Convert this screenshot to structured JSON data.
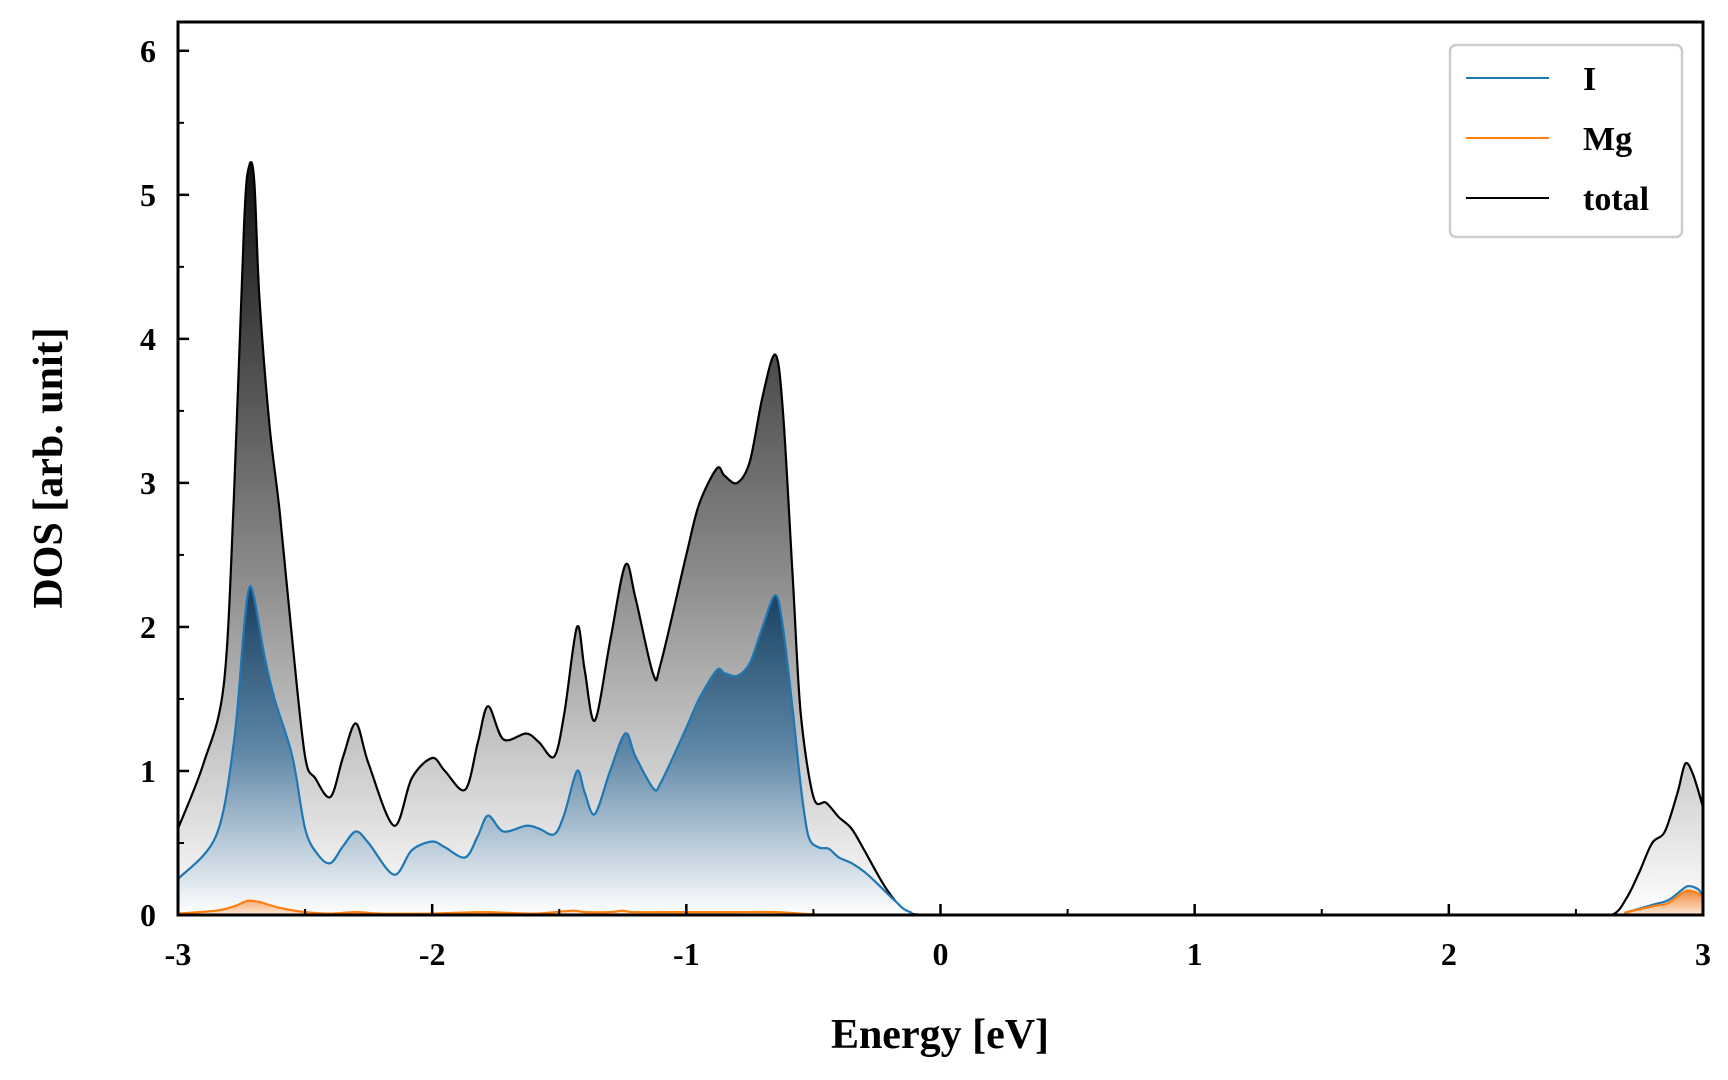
{
  "chart_data": {
    "type": "area",
    "title": "",
    "xlabel": "Energy [eV]",
    "ylabel": "DOS [arb. unit]",
    "xlim": [
      -3,
      3
    ],
    "ylim": [
      0,
      6.2
    ],
    "xticks": [
      -3,
      -2,
      -1,
      0,
      1,
      2,
      3
    ],
    "xtick_labels": [
      "-3",
      "-2",
      "-1",
      "0",
      "1",
      "2",
      "3"
    ],
    "yticks": [
      0,
      1,
      2,
      3,
      4,
      5,
      6
    ],
    "ytick_labels": [
      "0",
      "1",
      "2",
      "3",
      "4",
      "5",
      "6"
    ],
    "grid": false,
    "legend_position": "top-right",
    "series": [
      {
        "name": "total",
        "color": "#000000",
        "fill": "gray-gradient",
        "x": [
          -3.0,
          -2.9,
          -2.82,
          -2.78,
          -2.74,
          -2.72,
          -2.7,
          -2.68,
          -2.64,
          -2.6,
          -2.55,
          -2.5,
          -2.46,
          -2.4,
          -2.35,
          -2.3,
          -2.25,
          -2.15,
          -2.08,
          -2.0,
          -1.95,
          -1.87,
          -1.82,
          -1.78,
          -1.72,
          -1.63,
          -1.58,
          -1.52,
          -1.48,
          -1.43,
          -1.4,
          -1.36,
          -1.3,
          -1.24,
          -1.2,
          -1.13,
          -1.1,
          -1.0,
          -0.95,
          -0.88,
          -0.85,
          -0.8,
          -0.75,
          -0.7,
          -0.65,
          -0.62,
          -0.58,
          -0.55,
          -0.5,
          -0.45,
          -0.4,
          -0.35,
          -0.3,
          -0.22,
          -0.15,
          -0.12,
          0.0,
          0.5,
          1.0,
          1.5,
          2.0,
          2.5,
          2.64,
          2.7,
          2.75,
          2.8,
          2.85,
          2.9,
          2.93,
          2.96,
          3.0
        ],
        "y": [
          0.6,
          1.05,
          1.6,
          2.9,
          4.8,
          5.2,
          5.1,
          4.3,
          3.4,
          2.8,
          1.9,
          1.1,
          0.95,
          0.82,
          1.1,
          1.33,
          1.05,
          0.62,
          0.95,
          1.09,
          1.0,
          0.87,
          1.2,
          1.45,
          1.22,
          1.26,
          1.2,
          1.1,
          1.4,
          2.0,
          1.7,
          1.35,
          1.9,
          2.43,
          2.2,
          1.67,
          1.75,
          2.5,
          2.85,
          3.1,
          3.05,
          3.0,
          3.15,
          3.6,
          3.89,
          3.5,
          2.3,
          1.4,
          0.82,
          0.78,
          0.68,
          0.6,
          0.45,
          0.2,
          0.04,
          0.01,
          0.0,
          0.0,
          0.0,
          0.0,
          0.0,
          0.0,
          0.0,
          0.12,
          0.3,
          0.5,
          0.58,
          0.85,
          1.05,
          0.98,
          0.75
        ]
      },
      {
        "name": "I",
        "color": "#1f77b4",
        "fill": "blue-gradient",
        "x": [
          -3.0,
          -2.85,
          -2.78,
          -2.74,
          -2.72,
          -2.7,
          -2.66,
          -2.62,
          -2.55,
          -2.5,
          -2.45,
          -2.4,
          -2.35,
          -2.3,
          -2.25,
          -2.15,
          -2.08,
          -2.0,
          -1.95,
          -1.87,
          -1.82,
          -1.78,
          -1.72,
          -1.63,
          -1.58,
          -1.52,
          -1.48,
          -1.43,
          -1.4,
          -1.36,
          -1.3,
          -1.24,
          -1.2,
          -1.13,
          -1.1,
          -1.0,
          -0.95,
          -0.88,
          -0.85,
          -0.8,
          -0.75,
          -0.7,
          -0.65,
          -0.62,
          -0.58,
          -0.55,
          -0.52,
          -0.48,
          -0.44,
          -0.4,
          -0.35,
          -0.3,
          -0.25,
          -0.18,
          -0.12,
          0.0,
          1.0,
          2.0,
          2.64,
          2.7,
          2.8,
          2.86,
          2.9,
          2.94,
          2.98,
          3.0
        ],
        "y": [
          0.25,
          0.55,
          1.2,
          2.0,
          2.27,
          2.2,
          1.8,
          1.5,
          1.1,
          0.6,
          0.42,
          0.36,
          0.48,
          0.58,
          0.5,
          0.28,
          0.45,
          0.51,
          0.47,
          0.4,
          0.55,
          0.69,
          0.58,
          0.62,
          0.6,
          0.56,
          0.7,
          1.0,
          0.85,
          0.7,
          1.0,
          1.26,
          1.1,
          0.88,
          0.92,
          1.3,
          1.5,
          1.7,
          1.68,
          1.66,
          1.75,
          2.0,
          2.22,
          2.0,
          1.4,
          0.9,
          0.55,
          0.47,
          0.46,
          0.4,
          0.36,
          0.3,
          0.22,
          0.1,
          0.02,
          0.0,
          0.0,
          0.0,
          0.0,
          0.02,
          0.07,
          0.1,
          0.15,
          0.2,
          0.18,
          0.13
        ]
      },
      {
        "name": "Mg",
        "color": "#ff7f0e",
        "fill": "orange-gradient",
        "x": [
          -3.0,
          -2.85,
          -2.78,
          -2.74,
          -2.72,
          -2.68,
          -2.6,
          -2.5,
          -2.4,
          -2.3,
          -2.2,
          -2.0,
          -1.8,
          -1.6,
          -1.45,
          -1.4,
          -1.3,
          -1.25,
          -1.2,
          -1.0,
          -0.8,
          -0.65,
          -0.55,
          -0.45,
          -0.3,
          0.0,
          1.0,
          2.0,
          2.64,
          2.7,
          2.8,
          2.86,
          2.9,
          2.94,
          2.98,
          3.0
        ],
        "y": [
          0.01,
          0.03,
          0.06,
          0.09,
          0.1,
          0.09,
          0.05,
          0.02,
          0.01,
          0.02,
          0.01,
          0.01,
          0.02,
          0.01,
          0.03,
          0.02,
          0.02,
          0.03,
          0.02,
          0.02,
          0.02,
          0.02,
          0.01,
          0.0,
          0.0,
          0.0,
          0.0,
          0.0,
          0.0,
          0.02,
          0.06,
          0.08,
          0.13,
          0.17,
          0.15,
          0.12
        ]
      }
    ],
    "legend": [
      {
        "label": "I",
        "color": "#1f77b4"
      },
      {
        "label": "Mg",
        "color": "#ff7f0e"
      },
      {
        "label": "total",
        "color": "#000000"
      }
    ]
  }
}
